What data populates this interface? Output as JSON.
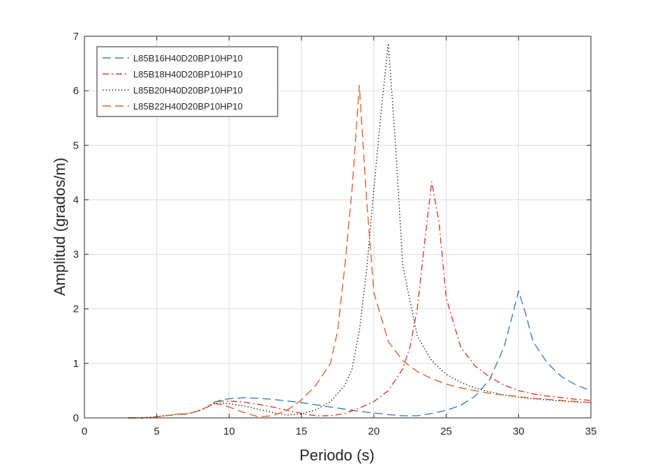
{
  "chart_data": {
    "type": "line",
    "title": "",
    "xlabel": "Periodo (s)",
    "ylabel": "Amplitud (grados/m)",
    "xlim": [
      0,
      35
    ],
    "ylim": [
      0,
      7
    ],
    "xticks": [
      0,
      5,
      10,
      15,
      20,
      25,
      30,
      35
    ],
    "yticks": [
      0,
      1,
      2,
      3,
      4,
      5,
      6,
      7
    ],
    "grid": true,
    "legend_position": "top-left",
    "series": [
      {
        "name": "L85B16H40D20BP10HP10",
        "color": "#3d7fb5",
        "style": "dashed",
        "x": [
          3,
          4,
          5,
          5.5,
          6,
          6.5,
          7,
          7.5,
          8,
          8.5,
          9,
          9.5,
          10,
          10.5,
          11,
          12,
          13,
          14,
          15,
          16,
          17,
          18,
          19,
          20,
          21,
          22,
          23,
          24,
          25,
          26,
          27,
          28,
          29,
          29.5,
          30,
          30.5,
          31,
          32,
          33,
          34,
          35
        ],
        "values": [
          0,
          0,
          0.02,
          0.04,
          0.05,
          0.07,
          0.07,
          0.1,
          0.14,
          0.2,
          0.29,
          0.33,
          0.35,
          0.36,
          0.37,
          0.36,
          0.34,
          0.31,
          0.28,
          0.24,
          0.2,
          0.16,
          0.12,
          0.09,
          0.06,
          0.04,
          0.04,
          0.08,
          0.14,
          0.23,
          0.4,
          0.7,
          1.3,
          1.8,
          2.33,
          1.9,
          1.4,
          1.0,
          0.75,
          0.6,
          0.5
        ]
      },
      {
        "name": "L85B18H40D20BP10HP10",
        "color": "#d63d32",
        "style": "dashdot",
        "x": [
          3,
          4,
          5,
          5.5,
          6,
          6.5,
          7,
          7.5,
          8,
          8.5,
          9,
          9.5,
          10,
          11,
          12,
          13,
          14,
          15,
          16,
          17,
          18,
          19,
          20,
          21,
          22,
          22.5,
          23,
          23.5,
          24,
          24.5,
          25,
          26,
          27,
          28,
          29,
          30,
          31,
          32,
          33,
          34,
          35
        ],
        "values": [
          0,
          0,
          0.02,
          0.04,
          0.05,
          0.07,
          0.07,
          0.1,
          0.14,
          0.2,
          0.29,
          0.31,
          0.31,
          0.29,
          0.25,
          0.2,
          0.14,
          0.08,
          0.04,
          0.04,
          0.08,
          0.18,
          0.3,
          0.5,
          0.9,
          1.3,
          2.0,
          3.2,
          4.33,
          3.6,
          2.2,
          1.3,
          0.95,
          0.75,
          0.6,
          0.5,
          0.44,
          0.4,
          0.37,
          0.34,
          0.32
        ]
      },
      {
        "name": "L85B20H40D20BP10HP10",
        "color": "#222222",
        "style": "dotted",
        "x": [
          3,
          4,
          5,
          5.5,
          6,
          6.5,
          7,
          7.5,
          8,
          8.5,
          9,
          9.5,
          10,
          11,
          12,
          13,
          14,
          15,
          16,
          17,
          18,
          18.5,
          19,
          19.5,
          20,
          20.5,
          21,
          21.5,
          22,
          23,
          24,
          25,
          26,
          27,
          28,
          29,
          30,
          31,
          32,
          33,
          34,
          35
        ],
        "values": [
          0,
          0,
          0.02,
          0.04,
          0.05,
          0.07,
          0.07,
          0.1,
          0.14,
          0.2,
          0.27,
          0.27,
          0.26,
          0.22,
          0.16,
          0.1,
          0.05,
          0.07,
          0.15,
          0.3,
          0.6,
          0.9,
          1.6,
          2.7,
          4.2,
          5.6,
          6.87,
          5.0,
          2.8,
          1.5,
          1.05,
          0.8,
          0.65,
          0.55,
          0.48,
          0.42,
          0.38,
          0.35,
          0.33,
          0.31,
          0.29,
          0.28
        ]
      },
      {
        "name": "L85B22H40D20BP10HP10",
        "color": "#d9652f",
        "style": "dashed",
        "x": [
          3,
          4,
          5,
          5.5,
          6,
          6.5,
          7,
          7.5,
          8,
          8.5,
          9,
          9.5,
          10,
          11,
          12,
          13,
          14,
          15,
          16,
          17,
          17.5,
          18,
          18.5,
          19,
          19.5,
          20,
          21,
          22,
          23,
          24,
          25,
          26,
          27,
          28,
          29,
          30,
          31,
          32,
          33,
          34,
          35
        ],
        "values": [
          0,
          0,
          0.02,
          0.04,
          0.05,
          0.07,
          0.07,
          0.1,
          0.14,
          0.2,
          0.26,
          0.24,
          0.2,
          0.1,
          0.02,
          0.04,
          0.14,
          0.33,
          0.6,
          1.0,
          1.6,
          2.8,
          4.2,
          6.1,
          4.0,
          2.3,
          1.4,
          1.05,
          0.85,
          0.72,
          0.62,
          0.55,
          0.5,
          0.45,
          0.42,
          0.39,
          0.36,
          0.34,
          0.32,
          0.3,
          0.28
        ]
      }
    ]
  }
}
